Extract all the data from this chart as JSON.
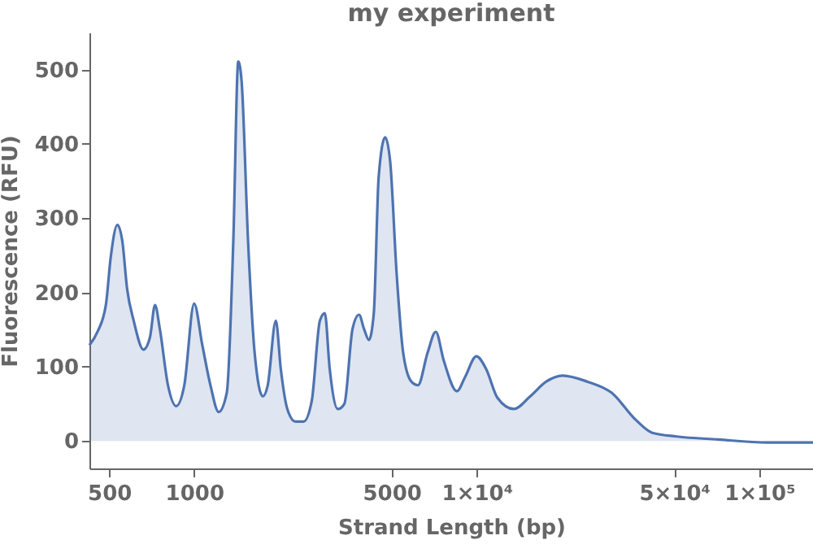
{
  "chart_data": {
    "type": "area",
    "title": "my experiment",
    "xlabel": "Strand Length (bp)",
    "ylabel": "Fluorescence (RFU)",
    "x": [
      426,
      455,
      487,
      507,
      535,
      557,
      579,
      611,
      662,
      698,
      727,
      756,
      808,
      864,
      923,
      1000,
      1069,
      1142,
      1221,
      1305,
      1376,
      1433,
      1472,
      1552,
      1637,
      1750,
      1822,
      1946,
      2026,
      2137,
      2283,
      2440,
      2608,
      2787,
      2901,
      3019,
      3226,
      3402,
      3636,
      3834,
      3992,
      4155,
      4324,
      4500,
      4745,
      4939,
      5207,
      5492,
      5870,
      6196,
      6706,
      7164,
      7649,
      8517,
      9094,
      9975,
      10800,
      11850,
      13530,
      15450,
      17640,
      20140,
      24580,
      30000,
      36650,
      41840,
      51110,
      71330,
      106500,
      155000
    ],
    "series": [
      {
        "color": "#4e73b0",
        "values": [
          129,
          147,
          183,
          248,
          291,
          269,
          205,
          162,
          123,
          140,
          183,
          151,
          75,
          47,
          75,
          185,
          129,
          75,
          39,
          65,
          269,
          511,
          485,
          269,
          119,
          60,
          75,
          162,
          97,
          43,
          26,
          26,
          54,
          162,
          172,
          97,
          43,
          50,
          151,
          170,
          151,
          136,
          172,
          356,
          409,
          377,
          226,
          119,
          80,
          75,
          119,
          147,
          108,
          67,
          86,
          114,
          97,
          58,
          43,
          60,
          80,
          88,
          80,
          65,
          28,
          11,
          6,
          2,
          -2,
          -2
        ]
      }
    ],
    "xlim": [
      426,
      155000
    ],
    "ylim": [
      -37,
      550
    ],
    "log": "x",
    "xticks": [
      500,
      1000,
      5000,
      {
        "value": 10000,
        "label": "1×10⁴"
      },
      {
        "value": 50000,
        "label": "5×10⁴"
      },
      {
        "value": 100000,
        "label": "1×10⁵"
      }
    ],
    "yticks": [
      0,
      100,
      200,
      300,
      400,
      500
    ]
  }
}
